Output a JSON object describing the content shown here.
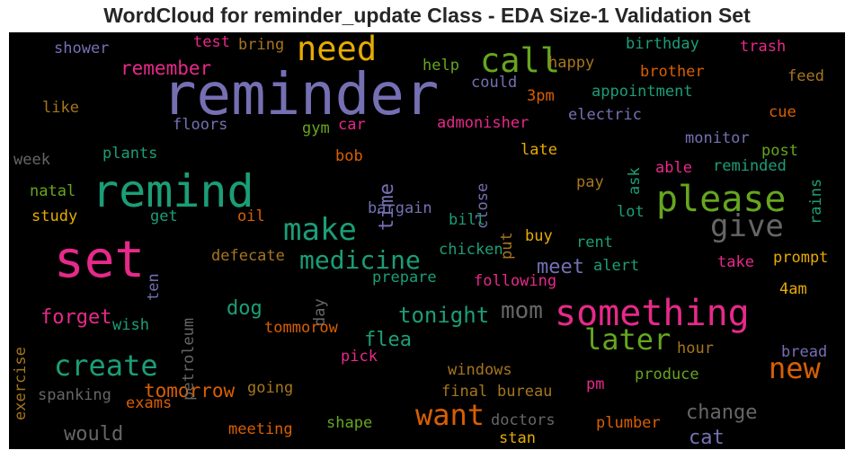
{
  "chart_data": {
    "type": "wordcloud",
    "title": "WordCloud for reminder_update Class - EDA Size-1 Validation Set",
    "palette": [
      "#7570b3",
      "#1b9e77",
      "#e7298a",
      "#d95f02",
      "#66a61e",
      "#e6ab02",
      "#a6761d",
      "#666666"
    ],
    "words": [
      {
        "text": "reminder",
        "color": "#7570b3"
      },
      {
        "text": "remind",
        "color": "#1b9e77"
      },
      {
        "text": "set",
        "color": "#e7298a"
      },
      {
        "text": "something",
        "color": "#e7298a"
      },
      {
        "text": "please",
        "color": "#66a61e"
      },
      {
        "text": "need",
        "color": "#e6ab02"
      },
      {
        "text": "call",
        "color": "#66a61e"
      },
      {
        "text": "make",
        "color": "#1b9e77"
      },
      {
        "text": "give",
        "color": "#666666"
      },
      {
        "text": "create",
        "color": "#1b9e77"
      },
      {
        "text": "later",
        "color": "#66a61e"
      },
      {
        "text": "new",
        "color": "#d95f02"
      },
      {
        "text": "want",
        "color": "#d95f02"
      },
      {
        "text": "medicine",
        "color": "#1b9e77"
      },
      {
        "text": "mom",
        "color": "#666666"
      },
      {
        "text": "tonight",
        "color": "#1b9e77"
      },
      {
        "text": "time",
        "color": "#7570b3"
      },
      {
        "text": "forget",
        "color": "#e7298a"
      },
      {
        "text": "dog",
        "color": "#1b9e77"
      },
      {
        "text": "flea",
        "color": "#1b9e77"
      },
      {
        "text": "meet",
        "color": "#7570b3"
      },
      {
        "text": "remember",
        "color": "#e7298a"
      },
      {
        "text": "tomorrow",
        "color": "#d95f02"
      },
      {
        "text": "change",
        "color": "#666666"
      },
      {
        "text": "cat",
        "color": "#7570b3"
      },
      {
        "text": "would",
        "color": "#666666"
      },
      {
        "text": "bargain",
        "color": "#7570b3"
      },
      {
        "text": "birthday",
        "color": "#1b9e77"
      },
      {
        "text": "shower",
        "color": "#7570b3"
      },
      {
        "text": "test",
        "color": "#e7298a"
      },
      {
        "text": "bring",
        "color": "#a6761d"
      },
      {
        "text": "trash",
        "color": "#e7298a"
      },
      {
        "text": "brother",
        "color": "#d95f02"
      },
      {
        "text": "feed",
        "color": "#a6761d"
      },
      {
        "text": "happy",
        "color": "#a6761d"
      },
      {
        "text": "help",
        "color": "#66a61e"
      },
      {
        "text": "could",
        "color": "#7570b3"
      },
      {
        "text": "appointment",
        "color": "#1b9e77"
      },
      {
        "text": "like",
        "color": "#a6761d"
      },
      {
        "text": "3pm",
        "color": "#d95f02"
      },
      {
        "text": "cue",
        "color": "#d95f02"
      },
      {
        "text": "floors",
        "color": "#7570b3"
      },
      {
        "text": "car",
        "color": "#e7298a"
      },
      {
        "text": "admonisher",
        "color": "#e7298a"
      },
      {
        "text": "electric",
        "color": "#7570b3"
      },
      {
        "text": "gym",
        "color": "#66a61e"
      },
      {
        "text": "close",
        "color": "#7570b3"
      },
      {
        "text": "monitor",
        "color": "#7570b3"
      },
      {
        "text": "post",
        "color": "#66a61e"
      },
      {
        "text": "rains",
        "color": "#1b9e77"
      },
      {
        "text": "week",
        "color": "#666666"
      },
      {
        "text": "plants",
        "color": "#1b9e77"
      },
      {
        "text": "bob",
        "color": "#d95f02"
      },
      {
        "text": "late",
        "color": "#e6ab02"
      },
      {
        "text": "ask",
        "color": "#1b9e77"
      },
      {
        "text": "able",
        "color": "#e7298a"
      },
      {
        "text": "reminded",
        "color": "#1b9e77"
      },
      {
        "text": "natal",
        "color": "#66a61e"
      },
      {
        "text": "pay",
        "color": "#a6761d"
      },
      {
        "text": "study",
        "color": "#e6ab02"
      },
      {
        "text": "get",
        "color": "#1b9e77"
      },
      {
        "text": "oil",
        "color": "#d95f02"
      },
      {
        "text": "bill",
        "color": "#1b9e77"
      },
      {
        "text": "put",
        "color": "#a6761d"
      },
      {
        "text": "lot",
        "color": "#1b9e77"
      },
      {
        "text": "buy",
        "color": "#e6ab02"
      },
      {
        "text": "ten",
        "color": "#7570b3"
      },
      {
        "text": "petroleum",
        "color": "#666666"
      },
      {
        "text": "defecate",
        "color": "#a6761d"
      },
      {
        "text": "chicken",
        "color": "#1b9e77"
      },
      {
        "text": "rent",
        "color": "#1b9e77"
      },
      {
        "text": "prompt",
        "color": "#e6ab02"
      },
      {
        "text": "take",
        "color": "#e7298a"
      },
      {
        "text": "alert",
        "color": "#1b9e77"
      },
      {
        "text": "exercise",
        "color": "#a6761d"
      },
      {
        "text": "day",
        "color": "#666666"
      },
      {
        "text": "prepare",
        "color": "#1b9e77"
      },
      {
        "text": "following",
        "color": "#e7298a"
      },
      {
        "text": "4am",
        "color": "#e6ab02"
      },
      {
        "text": "wish",
        "color": "#1b9e77"
      },
      {
        "text": "tommorow",
        "color": "#d95f02"
      },
      {
        "text": "hour",
        "color": "#a6761d"
      },
      {
        "text": "bread",
        "color": "#7570b3"
      },
      {
        "text": "pick",
        "color": "#e7298a"
      },
      {
        "text": "produce",
        "color": "#66a61e"
      },
      {
        "text": "windows",
        "color": "#a6761d"
      },
      {
        "text": "spanking",
        "color": "#666666"
      },
      {
        "text": "going",
        "color": "#a6761d"
      },
      {
        "text": "exams",
        "color": "#d95f02"
      },
      {
        "text": "final",
        "color": "#a6761d"
      },
      {
        "text": "bureau",
        "color": "#a6761d"
      },
      {
        "text": "pm",
        "color": "#e7298a"
      },
      {
        "text": "meeting",
        "color": "#d95f02"
      },
      {
        "text": "shape",
        "color": "#66a61e"
      },
      {
        "text": "doctors",
        "color": "#666666"
      },
      {
        "text": "plumber",
        "color": "#d95f02"
      },
      {
        "text": "stan",
        "color": "#e6ab02"
      }
    ]
  }
}
